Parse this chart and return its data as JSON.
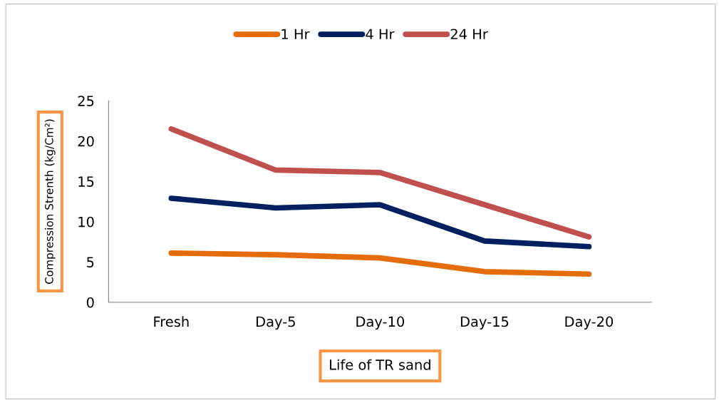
{
  "chart_data": {
    "type": "line",
    "xlabel": "Life of TR sand",
    "ylabel": "Compression Strenth (kg/Cm²)",
    "categories": [
      "Fresh",
      "Day-5",
      "Day-10",
      "Day-15",
      "Day-20"
    ],
    "series": [
      {
        "name": "1 Hr",
        "color": "#e46c0a",
        "values": [
          6.1,
          5.9,
          5.5,
          3.8,
          3.5
        ]
      },
      {
        "name": "4 Hr",
        "color": "#002060",
        "values": [
          12.9,
          11.7,
          12.1,
          7.6,
          6.9
        ]
      },
      {
        "name": "24 Hr",
        "color": "#c0504d",
        "values": [
          21.5,
          16.4,
          16.1,
          12.1,
          8.1
        ]
      }
    ],
    "ylim": [
      0,
      25
    ],
    "yticks": [
      0,
      5,
      10,
      15,
      20,
      25
    ],
    "grid": false,
    "legend": "top",
    "marker": "none",
    "line_style": "solid"
  }
}
